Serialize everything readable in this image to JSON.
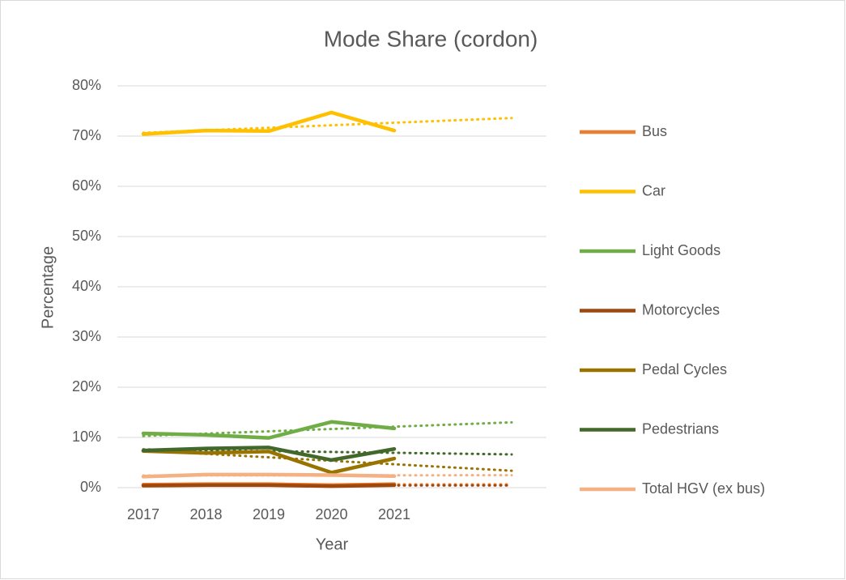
{
  "chart_data": {
    "type": "line",
    "title": "Mode Share (cordon)",
    "x_label": "Year",
    "y_label": "Percentage",
    "categories": [
      "2017",
      "2018",
      "2019",
      "2020",
      "2021"
    ],
    "series": [
      {
        "name": "Bus",
        "color": "#ED7D31",
        "values": [
          0.6,
          0.7,
          0.7,
          0.5,
          0.7
        ]
      },
      {
        "name": "Car",
        "color": "#FFC000",
        "values": [
          70.4,
          71.1,
          71.0,
          74.7,
          71.1
        ]
      },
      {
        "name": "Light Goods",
        "color": "#70AD47",
        "values": [
          10.8,
          10.5,
          9.9,
          13.1,
          11.8
        ]
      },
      {
        "name": "Motorcycles",
        "color": "#9E480E",
        "values": [
          0.4,
          0.5,
          0.5,
          0.3,
          0.5
        ]
      },
      {
        "name": "Pedal Cycles",
        "color": "#997300",
        "values": [
          7.3,
          6.9,
          7.2,
          3.0,
          5.8
        ]
      },
      {
        "name": "Pedestrians",
        "color": "#43682B",
        "values": [
          7.4,
          7.8,
          8.0,
          5.5,
          7.7
        ]
      },
      {
        "name": "Total HGV (ex bus)",
        "color": "#F4B183",
        "values": [
          2.2,
          2.6,
          2.6,
          2.5,
          2.3
        ]
      }
    ],
    "ylim": [
      0,
      80
    ],
    "yticks": [
      {
        "value": 0,
        "label": "0%"
      },
      {
        "value": 10,
        "label": "10%"
      },
      {
        "value": 20,
        "label": "20%"
      },
      {
        "value": 30,
        "label": "30%"
      },
      {
        "value": 40,
        "label": "40%"
      },
      {
        "value": 50,
        "label": "50%"
      },
      {
        "value": 60,
        "label": "60%"
      },
      {
        "value": 70,
        "label": "70%"
      },
      {
        "value": 80,
        "label": "80%"
      }
    ],
    "grid": true,
    "trendline": "linear",
    "legend": "right"
  }
}
